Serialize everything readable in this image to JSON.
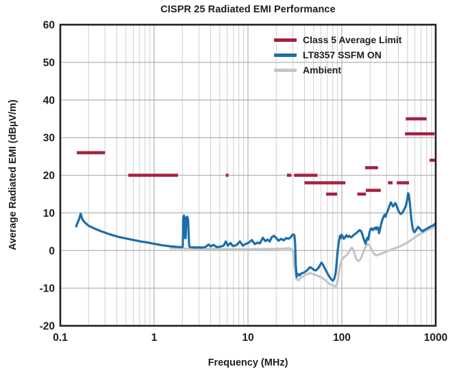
{
  "chart_data": {
    "type": "line",
    "title": "CISPR 25 Radiated EMI Performance",
    "xlabel": "Frequency (MHz)",
    "ylabel": "Average Radiated EMI (dBµV/m)",
    "x_scale": "log",
    "xlim": [
      0.1,
      1000
    ],
    "ylim": [
      -20,
      60
    ],
    "grid": true,
    "legend_position": "top-right",
    "x_ticks": [
      {
        "value": 0.1,
        "label": "0.1"
      },
      {
        "value": 1,
        "label": "1"
      },
      {
        "value": 10,
        "label": "10"
      },
      {
        "value": 100,
        "label": "100"
      },
      {
        "value": 1000,
        "label": "1000"
      }
    ],
    "y_ticks": [
      {
        "value": 60,
        "label": "60"
      },
      {
        "value": 50,
        "label": "50"
      },
      {
        "value": 40,
        "label": "40"
      },
      {
        "value": 30,
        "label": "30"
      },
      {
        "value": 20,
        "label": "20"
      },
      {
        "value": 10,
        "label": "10"
      },
      {
        "value": 0,
        "label": "0"
      },
      {
        "value": -10,
        "label": "-10"
      },
      {
        "value": -20,
        "label": "-20"
      }
    ],
    "series": [
      {
        "name": "Class 5 Average Limit",
        "color": "#A5203F",
        "style": "horizontal-segments",
        "line_width": 4.5,
        "segments": [
          {
            "f_start": 0.15,
            "f_end": 0.3,
            "level": 26
          },
          {
            "f_start": 0.53,
            "f_end": 1.8,
            "level": 20
          },
          {
            "f_start": 5.8,
            "f_end": 6.2,
            "level": 20
          },
          {
            "f_start": 26,
            "f_end": 29,
            "level": 20
          },
          {
            "f_start": 31,
            "f_end": 55,
            "level": 20
          },
          {
            "f_start": 40,
            "f_end": 109,
            "level": 18
          },
          {
            "f_start": 310,
            "f_end": 347,
            "level": 18
          },
          {
            "f_start": 385,
            "f_end": 520,
            "level": 18
          },
          {
            "f_start": 68,
            "f_end": 89,
            "level": 15
          },
          {
            "f_start": 146,
            "f_end": 181,
            "level": 15
          },
          {
            "f_start": 180,
            "f_end": 260,
            "level": 16
          },
          {
            "f_start": 177,
            "f_end": 243,
            "level": 22
          },
          {
            "f_start": 480,
            "f_end": 800,
            "level": 35
          },
          {
            "f_start": 470,
            "f_end": 970,
            "level": 31
          },
          {
            "f_start": 860,
            "f_end": 1000,
            "level": 24
          }
        ]
      },
      {
        "name": "LT8357 SSFM ON",
        "color": "#1C6DAB",
        "style": "line",
        "line_width": 3.2,
        "points": [
          [
            0.148,
            6.4
          ],
          [
            0.152,
            7.2
          ],
          [
            0.158,
            8.2
          ],
          [
            0.165,
            9.8
          ],
          [
            0.17,
            8.6
          ],
          [
            0.175,
            8.0
          ],
          [
            0.185,
            7.3
          ],
          [
            0.2,
            6.6
          ],
          [
            0.22,
            6.1
          ],
          [
            0.25,
            5.5
          ],
          [
            0.28,
            5.0
          ],
          [
            0.32,
            4.5
          ],
          [
            0.36,
            4.1
          ],
          [
            0.42,
            3.6
          ],
          [
            0.48,
            3.3
          ],
          [
            0.55,
            3.0
          ],
          [
            0.63,
            2.7
          ],
          [
            0.72,
            2.4
          ],
          [
            0.82,
            2.2
          ],
          [
            0.95,
            1.9
          ],
          [
            1.1,
            1.6
          ],
          [
            1.25,
            1.35
          ],
          [
            1.45,
            1.15
          ],
          [
            1.7,
            1.0
          ],
          [
            1.95,
            0.9
          ],
          [
            2.02,
            1.0
          ],
          [
            2.04,
            8.7
          ],
          [
            2.08,
            9.3
          ],
          [
            2.11,
            8.7
          ],
          [
            2.14,
            3.3
          ],
          [
            2.17,
            3.3
          ],
          [
            2.2,
            8.6
          ],
          [
            2.25,
            9.0
          ],
          [
            2.3,
            8.2
          ],
          [
            2.36,
            1.2
          ],
          [
            2.42,
            0.9
          ],
          [
            2.6,
            0.85
          ],
          [
            2.8,
            0.8
          ],
          [
            3.0,
            0.85
          ],
          [
            3.2,
            0.8
          ],
          [
            3.5,
            0.9
          ],
          [
            3.8,
            1.6
          ],
          [
            4.0,
            1.1
          ],
          [
            4.3,
            1.5
          ],
          [
            4.6,
            0.95
          ],
          [
            5.0,
            1.0
          ],
          [
            5.5,
            1.3
          ],
          [
            5.8,
            2.4
          ],
          [
            6.1,
            1.3
          ],
          [
            6.5,
            2.0
          ],
          [
            6.9,
            1.2
          ],
          [
            7.5,
            1.4
          ],
          [
            8.2,
            2.4
          ],
          [
            8.8,
            1.3
          ],
          [
            9.4,
            1.7
          ],
          [
            10.2,
            2.1
          ],
          [
            11.0,
            2.8
          ],
          [
            11.8,
            1.7
          ],
          [
            12.6,
            2.1
          ],
          [
            13.4,
            1.9
          ],
          [
            14.4,
            3.4
          ],
          [
            15.3,
            2.5
          ],
          [
            16.2,
            2.9
          ],
          [
            17.0,
            2.4
          ],
          [
            18.0,
            3.6
          ],
          [
            19.0,
            3.9
          ],
          [
            20.0,
            3.3
          ],
          [
            21.2,
            2.6
          ],
          [
            22.5,
            3.1
          ],
          [
            24.0,
            2.7
          ],
          [
            25.5,
            3.3
          ],
          [
            27.0,
            3.1
          ],
          [
            28.5,
            3.5
          ],
          [
            30.0,
            4.3
          ],
          [
            31.2,
            4.1
          ],
          [
            31.8,
            2.0
          ],
          [
            32.3,
            -4.0
          ],
          [
            33.0,
            -7.0
          ],
          [
            34.0,
            -6.2
          ],
          [
            35.5,
            -6.6
          ],
          [
            37.0,
            -6.1
          ],
          [
            39.0,
            -5.9
          ],
          [
            41.0,
            -5.6
          ],
          [
            43.5,
            -5.0
          ],
          [
            46.0,
            -4.4
          ],
          [
            48.0,
            -4.7
          ],
          [
            50.0,
            -5.1
          ],
          [
            53.0,
            -5.3
          ],
          [
            56.0,
            -4.7
          ],
          [
            58.5,
            -3.9
          ],
          [
            60.5,
            -3.2
          ],
          [
            62.5,
            -3.6
          ],
          [
            65.0,
            -4.5
          ],
          [
            68.0,
            -5.4
          ],
          [
            71.0,
            -6.3
          ],
          [
            74.0,
            -7.0
          ],
          [
            77.0,
            -7.6
          ],
          [
            80.0,
            -8.0
          ],
          [
            83.0,
            -7.5
          ],
          [
            85.5,
            -6.2
          ],
          [
            87.5,
            -4.0
          ],
          [
            89.5,
            -1.0
          ],
          [
            91.5,
            1.2
          ],
          [
            93.5,
            2.7
          ],
          [
            95.5,
            3.9
          ],
          [
            97.5,
            3.3
          ],
          [
            99.5,
            4.2
          ],
          [
            102,
            3.7
          ],
          [
            105,
            3.1
          ],
          [
            108,
            3.5
          ],
          [
            112,
            4.1
          ],
          [
            116,
            3.6
          ],
          [
            120,
            3.9
          ],
          [
            125,
            3.5
          ],
          [
            130,
            3.8
          ],
          [
            136,
            4.3
          ],
          [
            142,
            4.6
          ],
          [
            148,
            5.0
          ],
          [
            154,
            5.4
          ],
          [
            160,
            5.2
          ],
          [
            165,
            4.4
          ],
          [
            170,
            3.2
          ],
          [
            175,
            2.4
          ],
          [
            179,
            1.8
          ],
          [
            183,
            2.8
          ],
          [
            187,
            3.4
          ],
          [
            191,
            2.9
          ],
          [
            196,
            4.5
          ],
          [
            202,
            5.7
          ],
          [
            208,
            5.9
          ],
          [
            214,
            5.4
          ],
          [
            220,
            5.8
          ],
          [
            226,
            6.1
          ],
          [
            232,
            5.6
          ],
          [
            238,
            6.2
          ],
          [
            244,
            6.0
          ],
          [
            249,
            4.6
          ],
          [
            255,
            5.6
          ],
          [
            262,
            7.0
          ],
          [
            270,
            8.2
          ],
          [
            278,
            8.9
          ],
          [
            285,
            9.5
          ],
          [
            292,
            9.0
          ],
          [
            300,
            9.9
          ],
          [
            310,
            10.7
          ],
          [
            318,
            11.5
          ],
          [
            326,
            12.3
          ],
          [
            333,
            12.8
          ],
          [
            342,
            12.2
          ],
          [
            352,
            11.7
          ],
          [
            362,
            12.2
          ],
          [
            372,
            12.6
          ],
          [
            382,
            12.0
          ],
          [
            394,
            11.0
          ],
          [
            408,
            10.2
          ],
          [
            422,
            9.7
          ],
          [
            436,
            9.9
          ],
          [
            450,
            10.4
          ],
          [
            464,
            11.0
          ],
          [
            477,
            11.7
          ],
          [
            489,
            12.6
          ],
          [
            499,
            13.8
          ],
          [
            509,
            15.2
          ],
          [
            517,
            14.9
          ],
          [
            527,
            13.2
          ],
          [
            538,
            11.0
          ],
          [
            549,
            8.6
          ],
          [
            560,
            6.9
          ],
          [
            572,
            5.6
          ],
          [
            585,
            5.0
          ],
          [
            598,
            4.9
          ],
          [
            612,
            5.3
          ],
          [
            630,
            5.8
          ],
          [
            650,
            6.3
          ],
          [
            672,
            5.9
          ],
          [
            700,
            5.4
          ],
          [
            725,
            5.1
          ],
          [
            750,
            5.4
          ],
          [
            790,
            5.7
          ],
          [
            840,
            6.1
          ],
          [
            890,
            6.4
          ],
          [
            940,
            6.7
          ],
          [
            1000,
            7.2
          ]
        ]
      },
      {
        "name": "Ambient",
        "color": "#C3C6C9",
        "style": "line",
        "line_width": 3.2,
        "points": [
          [
            1.5,
            0.6
          ],
          [
            2.0,
            0.55
          ],
          [
            2.5,
            0.5
          ],
          [
            3.5,
            0.45
          ],
          [
            5,
            0.4
          ],
          [
            7,
            0.35
          ],
          [
            10,
            0.35
          ],
          [
            14,
            0.4
          ],
          [
            19,
            0.45
          ],
          [
            24,
            0.5
          ],
          [
            28,
            0.6
          ],
          [
            30,
            0.0
          ],
          [
            31.5,
            -4.5
          ],
          [
            33,
            -7.6
          ],
          [
            34.5,
            -7.9
          ],
          [
            36.5,
            -7.2
          ],
          [
            39,
            -6.8
          ],
          [
            42,
            -6.3
          ],
          [
            46,
            -6.0
          ],
          [
            50,
            -6.3
          ],
          [
            54,
            -6.6
          ],
          [
            58,
            -6.9
          ],
          [
            62,
            -7.3
          ],
          [
            66,
            -7.8
          ],
          [
            70,
            -8.4
          ],
          [
            74,
            -8.9
          ],
          [
            78,
            -9.2
          ],
          [
            82,
            -9.4
          ],
          [
            86,
            -9.5
          ],
          [
            89,
            -8.8
          ],
          [
            92,
            -6.8
          ],
          [
            95,
            -4.5
          ],
          [
            98,
            -3.0
          ],
          [
            101,
            -2.3
          ],
          [
            105,
            -1.8
          ],
          [
            109,
            -1.5
          ],
          [
            114,
            -1.1
          ],
          [
            119,
            -0.4
          ],
          [
            124,
            0.4
          ],
          [
            128,
            0.8
          ],
          [
            132,
            0.3
          ],
          [
            136,
            -0.7
          ],
          [
            140,
            -1.7
          ],
          [
            145,
            -2.5
          ],
          [
            150,
            -2.8
          ],
          [
            156,
            -2.5
          ],
          [
            162,
            -1.7
          ],
          [
            168,
            -0.7
          ],
          [
            175,
            0.5
          ],
          [
            182,
            1.3
          ],
          [
            189,
            1.7
          ],
          [
            196,
            1.5
          ],
          [
            204,
            0.7
          ],
          [
            212,
            -0.2
          ],
          [
            221,
            -0.9
          ],
          [
            230,
            -1.3
          ],
          [
            240,
            -1.2
          ],
          [
            253,
            -1.0
          ],
          [
            268,
            -0.8
          ],
          [
            285,
            -0.5
          ],
          [
            305,
            -0.2
          ],
          [
            325,
            0.1
          ],
          [
            350,
            0.4
          ],
          [
            378,
            0.7
          ],
          [
            408,
            1.0
          ],
          [
            440,
            1.4
          ],
          [
            472,
            1.8
          ],
          [
            505,
            2.2
          ],
          [
            540,
            2.7
          ],
          [
            578,
            3.2
          ],
          [
            618,
            3.7
          ],
          [
            660,
            4.2
          ],
          [
            705,
            4.6
          ],
          [
            755,
            5.0
          ],
          [
            810,
            5.4
          ],
          [
            865,
            5.7
          ],
          [
            925,
            6.0
          ],
          [
            1000,
            6.4
          ]
        ]
      }
    ]
  },
  "style": {
    "text_color": "#1d1d1f",
    "border_color": "#231F20",
    "grid_minor_color": "#cdcdcd",
    "grid_major_color": "#b2b2b2"
  }
}
